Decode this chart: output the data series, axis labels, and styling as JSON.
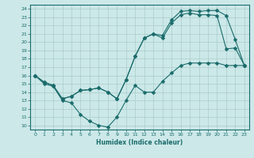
{
  "xlabel": "Humidex (Indice chaleur)",
  "bg_color": "#cce8e8",
  "line_color": "#1a6b6b",
  "grid_color": "#aacccc",
  "xlim": [
    -0.5,
    23.5
  ],
  "ylim": [
    9.5,
    24.5
  ],
  "xticks": [
    0,
    1,
    2,
    3,
    4,
    5,
    6,
    7,
    8,
    9,
    10,
    11,
    12,
    13,
    14,
    15,
    16,
    17,
    18,
    19,
    20,
    21,
    22,
    23
  ],
  "yticks": [
    10,
    11,
    12,
    13,
    14,
    15,
    16,
    17,
    18,
    19,
    20,
    21,
    22,
    23,
    24
  ],
  "line1_x": [
    0,
    1,
    2,
    3,
    4,
    5,
    6,
    7,
    8,
    9,
    10,
    11,
    12,
    13,
    14,
    15,
    16,
    17,
    18,
    19,
    20,
    21,
    22,
    23
  ],
  "line1_y": [
    16,
    15,
    14.7,
    13,
    12.7,
    11.3,
    10.5,
    10,
    9.8,
    11,
    13,
    14.8,
    14,
    14,
    15.3,
    16.3,
    17.2,
    17.5,
    17.5,
    17.5,
    17.5,
    17.2,
    17.2,
    17.2
  ],
  "line2_x": [
    0,
    1,
    2,
    3,
    4,
    5,
    6,
    7,
    8,
    9,
    10,
    11,
    12,
    13,
    14,
    15,
    16,
    17,
    18,
    19,
    20,
    21,
    22,
    23
  ],
  "line2_y": [
    16,
    15.2,
    14.8,
    13.2,
    13.5,
    14.2,
    14.3,
    14.5,
    14,
    13.2,
    15.5,
    18.3,
    20.5,
    21,
    20.5,
    22.3,
    23.3,
    23.5,
    23.3,
    23.3,
    23.2,
    19.2,
    19.3,
    17.2
  ],
  "line3_x": [
    0,
    1,
    2,
    3,
    4,
    5,
    6,
    7,
    8,
    9,
    10,
    11,
    12,
    13,
    14,
    15,
    16,
    17,
    18,
    19,
    20,
    21,
    22,
    23
  ],
  "line3_y": [
    16,
    15.2,
    14.8,
    13.2,
    13.5,
    14.2,
    14.3,
    14.5,
    14,
    13.2,
    15.5,
    18.3,
    20.5,
    21,
    20.8,
    22.7,
    23.7,
    23.8,
    23.7,
    23.8,
    23.8,
    23.2,
    20.3,
    17.2
  ]
}
